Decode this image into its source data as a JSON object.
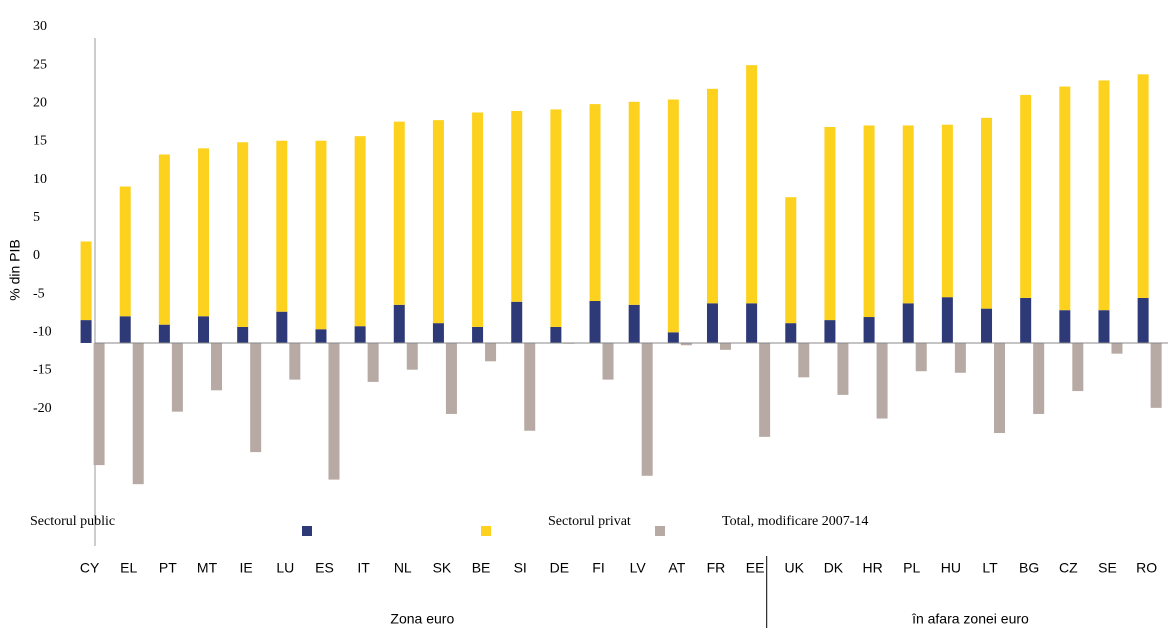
{
  "chart_data": {
    "type": "bar",
    "y_label": "% din PIB",
    "categories": [
      "CY",
      "EL",
      "PT",
      "MT",
      "IE",
      "LU",
      "ES",
      "IT",
      "NL",
      "SK",
      "BE",
      "SI",
      "DE",
      "FI",
      "LV",
      "AT",
      "FR",
      "EE",
      "UK",
      "DK",
      "HR",
      "PL",
      "HU",
      "LT",
      "BG",
      "CZ",
      "SE",
      "RO"
    ],
    "groups": [
      {
        "label": "Zona euro",
        "count": 18
      },
      {
        "label": "în afara zonei euro",
        "count": 10
      }
    ],
    "series": [
      {
        "name": "Sectorul public",
        "color": "#2e3a78",
        "stack": "a",
        "values": [
          3.0,
          3.5,
          2.4,
          3.5,
          2.1,
          4.1,
          1.8,
          2.2,
          5.0,
          2.6,
          2.1,
          5.4,
          2.1,
          5.5,
          5.0,
          1.4,
          5.2,
          5.2,
          2.6,
          3.0,
          3.4,
          5.2,
          6.0,
          4.5,
          5.9,
          4.3,
          4.3,
          5.9
        ]
      },
      {
        "name": "Sectorul privat",
        "color": "#fcd21f",
        "stack": "a",
        "values": [
          10.3,
          17.0,
          22.3,
          22.0,
          24.2,
          22.4,
          24.7,
          24.9,
          24.0,
          26.6,
          28.1,
          25.0,
          28.5,
          25.8,
          26.6,
          30.5,
          28.1,
          31.2,
          16.5,
          25.3,
          25.1,
          23.3,
          22.6,
          25.0,
          26.6,
          29.3,
          30.1,
          29.3
        ]
      },
      {
        "name": "Total, modificare 2007-14",
        "color": "#b7a9a3",
        "stack": "b",
        "values": [
          -16.0,
          -18.5,
          -9.0,
          -6.2,
          -14.3,
          -4.8,
          -17.9,
          -5.1,
          -3.5,
          -9.3,
          -2.4,
          -11.5,
          -0.1,
          -4.8,
          -17.4,
          -0.3,
          -0.9,
          -12.3,
          -4.5,
          -6.8,
          -9.9,
          -3.7,
          -3.9,
          -11.8,
          -9.3,
          -6.3,
          -1.4,
          -8.5
        ]
      }
    ],
    "x_axis_at": -11.4,
    "ylim": [
      -38,
      30
    ],
    "yticks": [
      30,
      25,
      20,
      15,
      10,
      5,
      0,
      -5,
      -10,
      -15,
      -20
    ]
  }
}
